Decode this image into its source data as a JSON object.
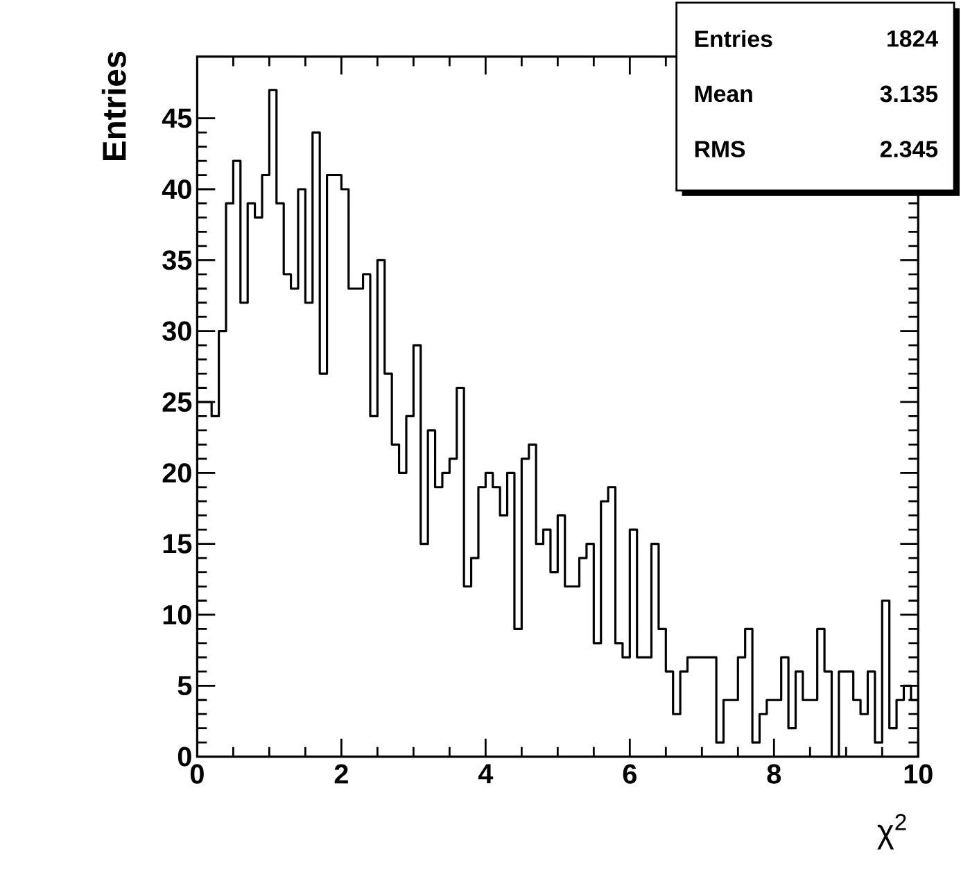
{
  "chart_data": {
    "type": "histogram",
    "xlabel": "χ$^{2}$",
    "ylabel": "Entries",
    "bins": [
      0,
      0.1,
      0.2,
      0.3,
      0.4,
      0.5,
      0.6,
      0.7,
      0.8,
      0.9,
      1,
      1.1,
      1.2,
      1.3,
      1.4,
      1.5,
      1.6,
      1.7,
      1.8,
      1.9,
      2,
      2.1,
      2.2,
      2.3,
      2.4,
      2.5,
      2.6,
      2.7,
      2.8,
      2.9,
      3,
      3.1,
      3.2,
      3.3,
      3.4,
      3.5,
      3.6,
      3.7,
      3.8,
      3.9,
      4,
      4.1,
      4.2,
      4.3,
      4.4,
      4.5,
      4.6,
      4.7,
      4.8,
      4.9,
      5,
      5.1,
      5.2,
      5.3,
      5.4,
      5.5,
      5.6,
      5.7,
      5.8,
      5.9,
      6,
      6.1,
      6.2,
      6.3,
      6.4,
      6.5,
      6.6,
      6.7,
      6.8,
      6.9,
      7,
      7.1,
      7.2,
      7.3,
      7.4,
      7.5,
      7.6,
      7.7,
      7.8,
      7.9,
      8,
      8.1,
      8.2,
      8.3,
      8.4,
      8.5,
      8.6,
      8.7,
      8.8,
      8.9,
      9,
      9.1,
      9.2,
      9.3,
      9.4,
      9.5,
      9.6,
      9.7,
      9.8,
      9.9,
      10
    ],
    "values": [
      25,
      25,
      24,
      30,
      39,
      42,
      32,
      39,
      38,
      41,
      47,
      39,
      34,
      33,
      40,
      32,
      44,
      27,
      41,
      41,
      40,
      33,
      33,
      34,
      24,
      35,
      27,
      22,
      20,
      24,
      29,
      15,
      23,
      19,
      20,
      21,
      26,
      12,
      14,
      19,
      20,
      19,
      17,
      20,
      9,
      21,
      22,
      15,
      16,
      13,
      17,
      12,
      12,
      14,
      15,
      8,
      18,
      19,
      8,
      7,
      16,
      7,
      7,
      15,
      9,
      6,
      3,
      6,
      7,
      7,
      7,
      7,
      1,
      4,
      4,
      7,
      9,
      1,
      3,
      4,
      4,
      7,
      2,
      6,
      4,
      4,
      9,
      6,
      0,
      6,
      6,
      4,
      3,
      6,
      1,
      11,
      2,
      4,
      5,
      4
    ],
    "color": "#000000",
    "xlim": [
      0,
      10
    ],
    "ylim": [
      0,
      49.35
    ],
    "xticks": [
      0,
      2,
      4,
      6,
      8,
      10
    ],
    "yticks": [
      0,
      5,
      10,
      15,
      20,
      25,
      30,
      35,
      40,
      45
    ],
    "grid": false,
    "annotations": [
      "Entries",
      "1824",
      "Mean",
      "3.135",
      "RMS",
      "2.345"
    ]
  }
}
